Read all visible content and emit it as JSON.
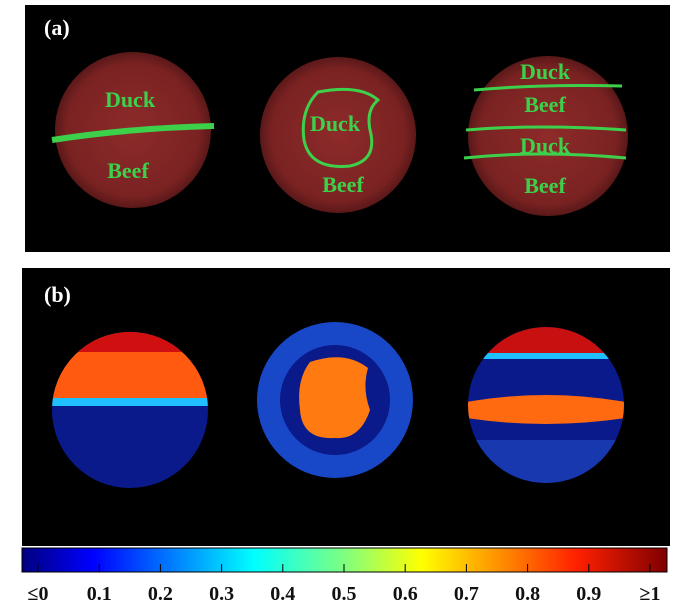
{
  "panel_a": {
    "label": "(a)",
    "discs": [
      {
        "labels": [
          "Duck",
          "Beef"
        ]
      },
      {
        "labels": [
          "Duck",
          "Beef"
        ]
      },
      {
        "labels": [
          "Duck",
          "Beef",
          "Duck",
          "Beef"
        ]
      }
    ]
  },
  "panel_b": {
    "label": "(b)"
  },
  "colorbar": {
    "ticks": [
      {
        "value": 0,
        "label": "≤0"
      },
      0.1,
      0.2,
      0.3,
      0.4,
      0.5,
      0.6,
      0.7,
      0.8,
      0.9,
      {
        "value": 1,
        "label": "≥1"
      }
    ]
  }
}
